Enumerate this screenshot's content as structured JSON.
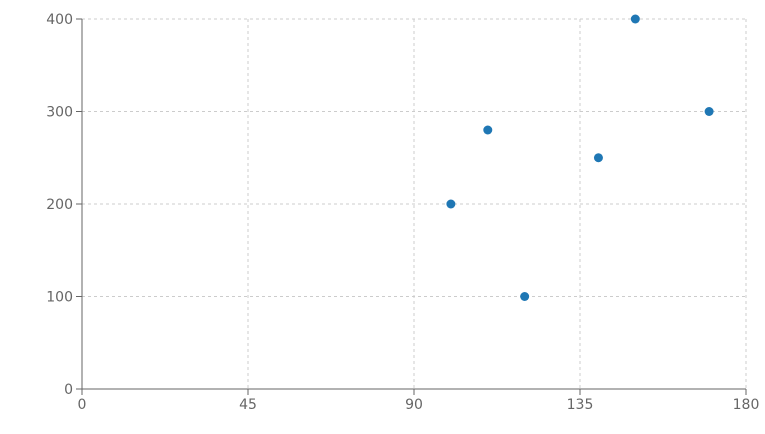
{
  "chart_data": {
    "type": "scatter",
    "title": "",
    "xlabel": "",
    "ylabel": "",
    "xlim": [
      0,
      180
    ],
    "ylim": [
      0,
      400
    ],
    "x_ticks": [
      0,
      45,
      90,
      135,
      180
    ],
    "y_ticks": [
      0,
      100,
      200,
      300,
      400
    ],
    "grid": true,
    "legend": "none",
    "colors": {
      "point": "#1f77b4",
      "grid": "#cccccc",
      "axis": "#666666"
    },
    "series": [
      {
        "points": [
          {
            "x": 100,
            "y": 200
          },
          {
            "x": 110,
            "y": 280
          },
          {
            "x": 120,
            "y": 100
          },
          {
            "x": 140,
            "y": 250
          },
          {
            "x": 150,
            "y": 400
          },
          {
            "x": 170,
            "y": 300
          }
        ]
      }
    ]
  }
}
